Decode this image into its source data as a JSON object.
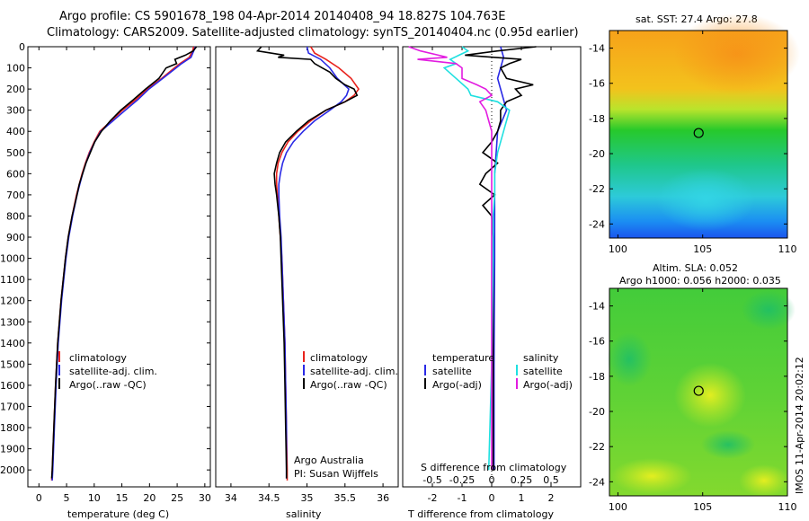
{
  "title_line1": "Argo profile: CS 5901678_198 04-Apr-2014 20140408_94 18.827S 104.763E",
  "title_line2": "Climatology: CARS2009. Satellite-adjusted climatology: synTS_20140404.nc (0.95d earlier)",
  "colors": {
    "climatology": "#e8231d",
    "satellite": "#2a2ae6",
    "argo": "#000000",
    "sal_satellite": "#1fe0e0",
    "sal_argo": "#e21ce0"
  },
  "chart_data": [
    {
      "type": "line",
      "name": "temperature-profile",
      "xlabel": "temperature (deg C)",
      "ylabel": "",
      "xlim": [
        -2,
        31
      ],
      "ylim": [
        2080,
        0
      ],
      "xticks": [
        "0",
        "5",
        "10",
        "15",
        "20",
        "25",
        "30"
      ],
      "xtick_values": [
        0,
        5,
        10,
        15,
        20,
        25,
        30
      ],
      "yticks": [
        "0",
        "100",
        "200",
        "300",
        "400",
        "500",
        "600",
        "700",
        "800",
        "900",
        "1000",
        "1100",
        "1200",
        "1300",
        "1400",
        "1500",
        "1600",
        "1700",
        "1800",
        "1900",
        "2000"
      ],
      "ytick_values": [
        0,
        100,
        200,
        300,
        400,
        500,
        600,
        700,
        800,
        900,
        1000,
        1100,
        1200,
        1300,
        1400,
        1500,
        1600,
        1700,
        1800,
        1900,
        2000
      ],
      "legend": [
        "climatology",
        "satellite-adj. clim.",
        "Argo(..raw -QC)"
      ],
      "series": [
        {
          "name": "climatology",
          "depth": [
            0,
            20,
            50,
            80,
            100,
            150,
            200,
            250,
            300,
            350,
            400,
            450,
            500,
            550,
            600,
            650,
            700,
            800,
            900,
            1000,
            1200,
            1400,
            1600,
            1800,
            2000,
            2050
          ],
          "values": [
            28.0,
            27.8,
            27.2,
            25.5,
            24.5,
            22.2,
            19.6,
            17.5,
            15.1,
            13.1,
            11.0,
            10.0,
            9.1,
            8.4,
            7.8,
            7.3,
            6.8,
            6.0,
            5.3,
            4.8,
            4.0,
            3.4,
            3.0,
            2.7,
            2.4,
            2.3
          ]
        },
        {
          "name": "satellite-adj. clim.",
          "depth": [
            0,
            20,
            50,
            80,
            100,
            150,
            200,
            250,
            300,
            350,
            400,
            450,
            500,
            550,
            600,
            650,
            700,
            800,
            900,
            1000,
            1200,
            1400,
            1600,
            1800,
            2000,
            2050
          ],
          "values": [
            28.3,
            28.0,
            27.5,
            25.8,
            24.8,
            22.4,
            19.9,
            17.9,
            15.6,
            13.4,
            11.2,
            10.1,
            9.2,
            8.5,
            7.9,
            7.4,
            6.9,
            6.1,
            5.4,
            4.9,
            4.1,
            3.5,
            3.1,
            2.8,
            2.5,
            2.4
          ]
        },
        {
          "name": "Argo(..raw -QC)",
          "depth": [
            0,
            20,
            40,
            60,
            80,
            100,
            150,
            200,
            250,
            300,
            350,
            400,
            450,
            500,
            550,
            600,
            650,
            700,
            800,
            900,
            1000,
            1200,
            1400,
            1600,
            1800,
            2000,
            2040
          ],
          "values": [
            28.5,
            27.9,
            26.5,
            24.6,
            24.9,
            23.0,
            21.7,
            19.3,
            17.1,
            14.8,
            12.9,
            11.3,
            10.1,
            9.3,
            8.5,
            7.9,
            7.3,
            6.9,
            6.0,
            5.3,
            4.8,
            4.0,
            3.4,
            3.0,
            2.7,
            2.4,
            2.3
          ]
        }
      ]
    },
    {
      "type": "line",
      "name": "salinity-profile",
      "xlabel": "salinity",
      "xlim": [
        33.8,
        36.2
      ],
      "ylim": [
        2080,
        0
      ],
      "xticks": [
        "34",
        "34.5",
        "35",
        "35.5",
        "36"
      ],
      "xtick_values": [
        34,
        34.5,
        35,
        35.5,
        36
      ],
      "legend": [
        "climatology",
        "satellite-adj. clim.",
        "Argo(..raw -QC)"
      ],
      "annotation": [
        "Argo Australia",
        "PI: Susan Wijffels"
      ],
      "series": [
        {
          "name": "climatology",
          "depth": [
            0,
            30,
            60,
            100,
            150,
            200,
            230,
            260,
            300,
            350,
            400,
            450,
            500,
            550,
            600,
            650,
            700,
            800,
            900,
            1000,
            1200,
            1400,
            1600,
            1800,
            2000,
            2050
          ],
          "values": [
            35.05,
            35.1,
            35.25,
            35.42,
            35.58,
            35.68,
            35.62,
            35.5,
            35.25,
            35.05,
            34.88,
            34.75,
            34.67,
            34.62,
            34.6,
            34.6,
            34.61,
            34.63,
            34.65,
            34.67,
            34.69,
            34.71,
            34.72,
            34.73,
            34.74,
            34.74
          ]
        },
        {
          "name": "satellite-adj. clim.",
          "depth": [
            0,
            30,
            60,
            100,
            150,
            200,
            230,
            260,
            300,
            350,
            400,
            450,
            500,
            550,
            600,
            650,
            700,
            800,
            900,
            1000,
            1200,
            1400,
            1600,
            1800,
            2000,
            2040
          ],
          "values": [
            35.0,
            35.02,
            35.18,
            35.3,
            35.4,
            35.55,
            35.52,
            35.45,
            35.3,
            35.1,
            34.95,
            34.82,
            34.73,
            34.68,
            34.65,
            34.63,
            34.63,
            34.64,
            34.66,
            34.67,
            34.69,
            34.71,
            34.72,
            34.73,
            34.73,
            34.73
          ]
        },
        {
          "name": "Argo(..raw -QC)",
          "depth": [
            0,
            20,
            40,
            50,
            60,
            80,
            100,
            120,
            150,
            180,
            200,
            230,
            260,
            300,
            350,
            400,
            450,
            500,
            550,
            600,
            650,
            700,
            800,
            900,
            1000,
            1200,
            1400,
            1600,
            1800,
            2000,
            2040
          ],
          "values": [
            34.4,
            34.35,
            34.7,
            34.62,
            35.05,
            35.1,
            35.2,
            35.3,
            35.38,
            35.5,
            35.62,
            35.66,
            35.5,
            35.25,
            35.02,
            34.86,
            34.72,
            34.64,
            34.6,
            34.57,
            34.58,
            34.6,
            34.63,
            34.65,
            34.66,
            34.68,
            34.7,
            34.71,
            34.72,
            34.73,
            34.73
          ]
        }
      ]
    },
    {
      "type": "line",
      "name": "difference-profile",
      "xlabel": "T difference from climatology",
      "xlabel_top": "S difference from climatology",
      "xlim": [
        -3,
        3
      ],
      "ylim": [
        2080,
        0
      ],
      "xticks_t": [
        "-2",
        "-1",
        "0",
        "1",
        "2"
      ],
      "xtick_values_t": [
        -2,
        -1,
        0,
        1,
        2
      ],
      "xticks_s": [
        "-0.5",
        "-0.25",
        "0",
        "0.25",
        "0.5"
      ],
      "xtick_values_s": [
        -2,
        -1,
        0,
        1,
        2
      ],
      "legend_temperature_title": "temperature",
      "legend_salinity_title": "salinity",
      "legend": [
        "satellite",
        "Argo(-adj)",
        "satellite",
        "Argo(-adj)"
      ],
      "series": [
        {
          "name": "T satellite",
          "depth": [
            0,
            50,
            100,
            150,
            200,
            250,
            300,
            400,
            500,
            600,
            700,
            800,
            1000,
            1500,
            2000
          ],
          "values": [
            0.3,
            0.4,
            0.3,
            0.2,
            0.3,
            0.4,
            0.5,
            0.2,
            0.15,
            0.1,
            0.1,
            0.1,
            0.1,
            0.08,
            0.08
          ]
        },
        {
          "name": "T Argo(-adj)",
          "depth": [
            0,
            20,
            40,
            60,
            80,
            100,
            150,
            180,
            200,
            230,
            260,
            300,
            350,
            400,
            450,
            500,
            550,
            600,
            650,
            700,
            750,
            800,
            900,
            1000,
            1500,
            2000
          ],
          "values": [
            1.5,
            0.2,
            -0.9,
            1.0,
            0.6,
            0.3,
            0.5,
            1.4,
            0.8,
            1.0,
            0.5,
            0.3,
            0.3,
            0.2,
            0.0,
            -0.3,
            0.2,
            -0.2,
            -0.4,
            0.1,
            -0.3,
            0.0,
            0.05,
            0.05,
            0.05,
            0.05
          ]
        },
        {
          "name": "S satellite",
          "depth": [
            0,
            20,
            40,
            60,
            80,
            100,
            150,
            200,
            230,
            260,
            300,
            350,
            400,
            500,
            600,
            700,
            800,
            1000,
            1500,
            2000
          ],
          "values": [
            -1.0,
            -0.8,
            -1.1,
            -1.4,
            -1.2,
            -1.6,
            -1.2,
            -0.8,
            -0.7,
            0.2,
            0.6,
            0.5,
            0.4,
            0.2,
            0.1,
            0.1,
            0.05,
            0.05,
            0.0,
            -0.1
          ]
        },
        {
          "name": "S Argo(-adj)",
          "depth": [
            0,
            20,
            40,
            50,
            60,
            80,
            100,
            150,
            180,
            200,
            230,
            260,
            300,
            350,
            400,
            500,
            600,
            700,
            800,
            1000,
            1500,
            2000
          ],
          "values": [
            -2.8,
            -2.4,
            -1.8,
            -1.5,
            -2.5,
            -1.2,
            -1.0,
            -1.0,
            -0.5,
            -0.2,
            0.0,
            -0.4,
            -0.2,
            -0.1,
            0.0,
            0.0,
            0.0,
            0.0,
            0.0,
            0.0,
            0.0,
            0.0
          ]
        }
      ]
    },
    {
      "type": "heatmap",
      "name": "sst-map",
      "title": "sat. SST: 27.4 Argo: 27.8",
      "xlim": [
        99.5,
        110
      ],
      "ylim": [
        -24.8,
        -13
      ],
      "xticks": [
        "100",
        "105",
        "110"
      ],
      "xtick_values": [
        100,
        105,
        110
      ],
      "yticks": [
        "-14",
        "-16",
        "-18",
        "-20",
        "-22",
        "-24"
      ],
      "ytick_values": [
        -14,
        -16,
        -18,
        -20,
        -22,
        -24
      ],
      "argo_marker": [
        104.763,
        -18.827
      ]
    },
    {
      "type": "heatmap",
      "name": "sla-map",
      "title_line1": "Altim. SLA: 0.052",
      "title_line2": "Argo h1000: 0.056 h2000: 0.035",
      "xlim": [
        99.5,
        110
      ],
      "ylim": [
        -24.8,
        -13
      ],
      "xticks": [
        "100",
        "105",
        "110"
      ],
      "xtick_values": [
        100,
        105,
        110
      ],
      "yticks": [
        "-14",
        "-16",
        "-18",
        "-20",
        "-22",
        "-24"
      ],
      "ytick_values": [
        -14,
        -16,
        -18,
        -20,
        -22,
        -24
      ],
      "argo_marker": [
        104.763,
        -18.827
      ],
      "side_label": "IMOS 11-Apr-2014 20:02:12"
    }
  ]
}
